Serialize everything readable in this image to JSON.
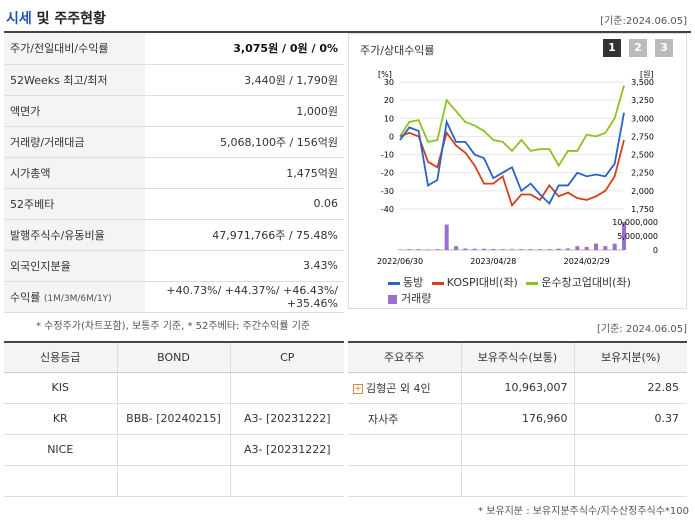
{
  "header": {
    "title_a": "시세",
    "title_b": " 및 주주현황",
    "date": "[기준:2024.06.05]"
  },
  "quote_rows": [
    {
      "k": "주가/전일대비/수익률",
      "v": "3,075원 / 0원 / 0%"
    },
    {
      "k": "52Weeks 최고/최저",
      "v": "3,440원 / 1,790원"
    },
    {
      "k": "액면가",
      "v": "1,000원"
    },
    {
      "k": "거래량/거래대금",
      "v": "5,068,100주 / 156억원"
    },
    {
      "k": "시가총액",
      "v": "1,475억원"
    },
    {
      "k": "52주베타",
      "v": "0.06"
    },
    {
      "k": "발행주식수/유동비율",
      "v": "47,971,766주 / 75.48%"
    },
    {
      "k": "외국인지분율",
      "v": "3.43%"
    }
  ],
  "returns": {
    "k": "수익률",
    "sub": "(1M/3M/6M/1Y)",
    "v": "+40.73%/ +44.37%/ +46.43%/ +35.46%"
  },
  "note1": "* 수정주가(차트포함), 보통주 기준, * 52주베타: 주간수익률 기준",
  "chart": {
    "title": "주가/상대수익률",
    "tabs": [
      "1",
      "2",
      "3"
    ],
    "left_unit": "[%]",
    "right_unit": "[원]",
    "left_ticks": [
      "30",
      "20",
      "10",
      "0",
      "-10",
      "-20",
      "-30",
      "-40"
    ],
    "right_ticks": [
      "3,500",
      "3,250",
      "3,000",
      "2,750",
      "2,500",
      "2,250",
      "2,000",
      "1,750"
    ],
    "vol_ticks": [
      "10,000,000",
      "5,000,000",
      "0"
    ],
    "x_ticks": [
      "2022/06/30",
      "2023/04/28",
      "2024/02/29"
    ],
    "legend": [
      "동방",
      "KOSPI대비(좌)",
      "운수창고업대비(좌)",
      "거래량"
    ],
    "colors": {
      "stock": "#2a62c9",
      "kospi": "#d2401c",
      "sector": "#8dc21f",
      "volume": "#9a6fd0"
    }
  },
  "chart_data": {
    "type": "line",
    "x": [
      "2022/06",
      "2022/07",
      "2022/08",
      "2022/09",
      "2022/10",
      "2022/11",
      "2022/12",
      "2023/01",
      "2023/02",
      "2023/03",
      "2023/04",
      "2023/05",
      "2023/06",
      "2023/07",
      "2023/08",
      "2023/09",
      "2023/10",
      "2023/11",
      "2023/12",
      "2024/01",
      "2024/02",
      "2024/03",
      "2024/04",
      "2024/05",
      "2024/06"
    ],
    "series": [
      {
        "name": "동방",
        "values": [
          -2,
          5,
          3,
          -27,
          -24,
          8,
          -3,
          -3,
          -10,
          -12,
          -23,
          -20,
          -17,
          -30,
          -26,
          -32,
          -37,
          -27,
          -27,
          -20,
          -22,
          -21,
          -22,
          -15,
          13
        ]
      },
      {
        "name": "KOSPI대비(좌)",
        "values": [
          0,
          2,
          0,
          -14,
          -17,
          2,
          -5,
          -9,
          -16,
          -26,
          -26,
          -22,
          -38,
          -32,
          -32,
          -35,
          -27,
          -33,
          -31,
          -34,
          -35,
          -33,
          -30,
          -22,
          -2
        ]
      },
      {
        "name": "운수창고업대비(좌)",
        "values": [
          0,
          8,
          9,
          -3,
          -2,
          20,
          14,
          8,
          6,
          3,
          -2,
          -3,
          -8,
          -2,
          -8,
          -7,
          -7,
          -16,
          -8,
          -8,
          1,
          0,
          2,
          10,
          28
        ]
      },
      {
        "name": "거래량",
        "values": [
          0.2,
          0.3,
          0.3,
          0.2,
          0.3,
          10,
          1.5,
          0.6,
          0.5,
          0.5,
          0.4,
          0.3,
          0.3,
          0.3,
          0.3,
          0.3,
          0.3,
          0.5,
          0.6,
          1.5,
          1.2,
          2.5,
          1.5,
          2.5,
          11
        ]
      }
    ],
    "ylim": [
      -40,
      30
    ]
  },
  "date2": "[기준: 2024.06.05]",
  "credit": {
    "headers": [
      "신용등급",
      "BOND",
      "CP"
    ],
    "rows": [
      [
        "KIS",
        "",
        ""
      ],
      [
        "KR",
        "BBB-  [20240215]",
        "A3-  [20231222]"
      ],
      [
        "NICE",
        "",
        "A3-  [20231222]"
      ],
      [
        "",
        "",
        ""
      ]
    ]
  },
  "holders": {
    "headers": [
      "주요주주",
      "보유주식수(보통)",
      "보유지분(%)"
    ],
    "rows": [
      [
        "김형곤 외 4인",
        "10,963,007",
        "22.85"
      ],
      [
        "자사주",
        "176,960",
        "0.37"
      ],
      [
        "",
        "",
        ""
      ],
      [
        "",
        "",
        ""
      ]
    ]
  },
  "note2": "* 보유지분 : 보유지분주식수/지수산정주식수*100"
}
